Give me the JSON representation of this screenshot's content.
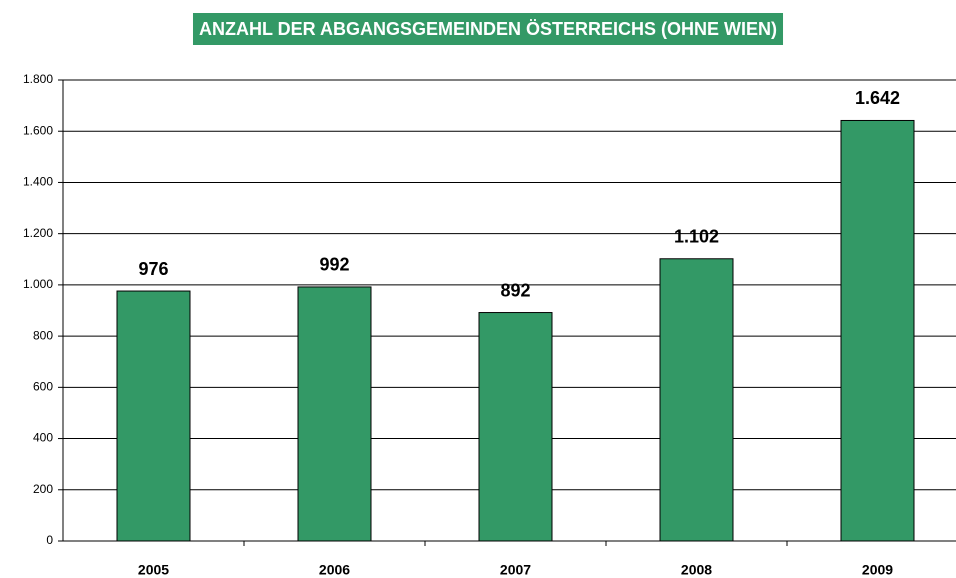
{
  "chart_data": {
    "type": "bar",
    "title": "ANZAHL DER ABGANGSGEMEINDEN ÖSTERREICHS (OHNE WIEN)",
    "categories": [
      "2005",
      "2006",
      "2007",
      "2008",
      "2009"
    ],
    "values": [
      976,
      992,
      892,
      1102,
      1642
    ],
    "value_labels": [
      "976",
      "992",
      "892",
      "1.102",
      "1.642"
    ],
    "color": "#339966",
    "ylim": [
      0,
      1800
    ],
    "yticks": [
      0,
      200,
      400,
      600,
      800,
      {
        "value": 1000,
        "label": "1.000"
      },
      {
        "value": 1200,
        "label": "1.200"
      },
      {
        "value": 1400,
        "label": "1.400"
      },
      {
        "value": 1600,
        "label": "1.600"
      },
      {
        "value": 1800,
        "label": "1.800"
      }
    ],
    "grid": true
  }
}
